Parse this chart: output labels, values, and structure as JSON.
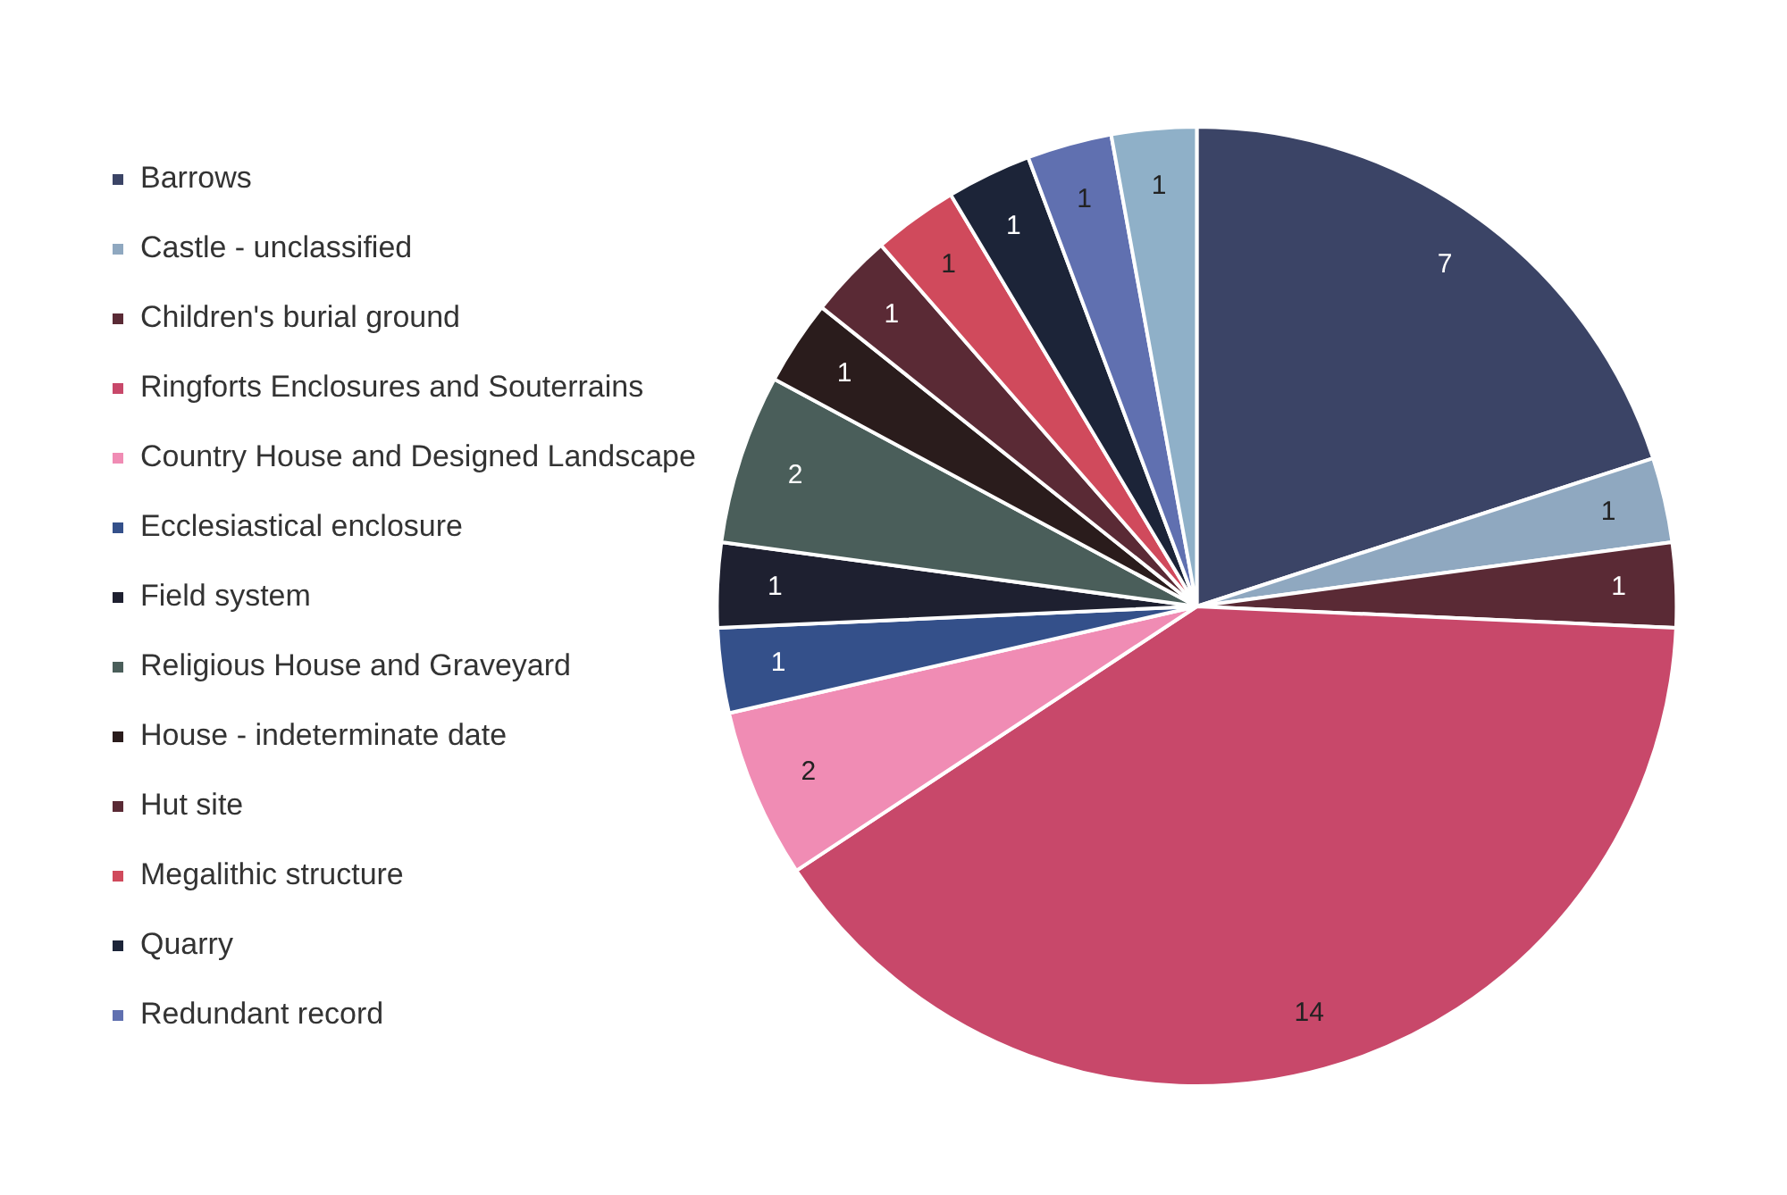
{
  "chart_data": {
    "type": "pie",
    "categories": [
      "Barrows",
      "Castle - unclassified",
      "Children's burial ground",
      "Ringforts Enclosures and Souterrains",
      "Country House and Designed Landscape",
      "Ecclesiastical enclosure",
      "Field system",
      "Religious House and Graveyard",
      "House - indeterminate date",
      "Hut site",
      "Megalithic structure",
      "Quarry",
      "Redundant record",
      null
    ],
    "values": [
      7,
      1,
      1,
      14,
      2,
      1,
      1,
      2,
      1,
      1,
      1,
      1,
      1,
      1
    ],
    "colors": [
      "#3b4466",
      "#8fa8c0",
      "#5a2a35",
      "#c8486a",
      "#f08cb4",
      "#34508a",
      "#1e2030",
      "#4a5e5a",
      "#2a1c1c",
      "#5a2a35",
      "#d04a5c",
      "#1c2438",
      "#6070b0",
      "#8fb0c8"
    ],
    "data_labels": true,
    "legend": "left"
  }
}
